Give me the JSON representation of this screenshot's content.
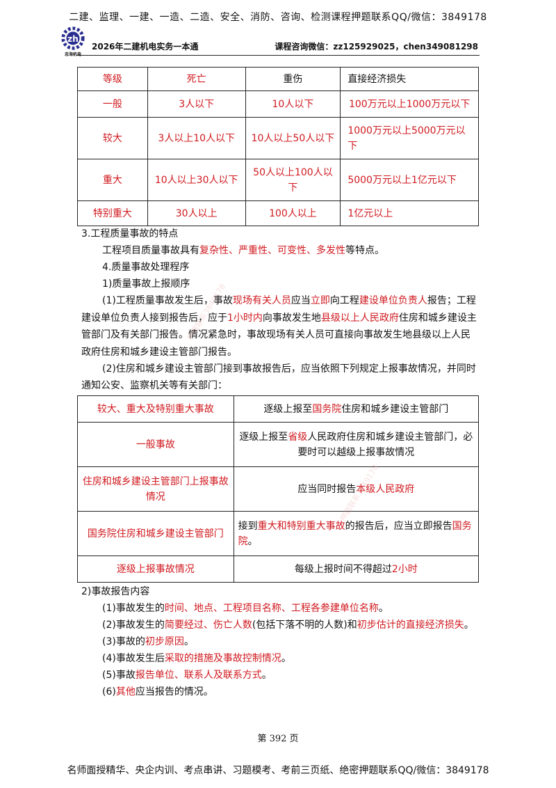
{
  "header": {
    "banner": "二建、监理、一建、一造、二造、安全、消防、咨询、检测课程押题联系QQ/微信：3849178",
    "logo_text": "忠海机电",
    "left": "2026年二建机电实务一本通",
    "right": "课程咨询微信：zz125929025，chen349081298"
  },
  "table1": {
    "headers": [
      "等级",
      "死亡",
      "重伤",
      "直接经济损失"
    ],
    "rows": [
      [
        "一般",
        "3人以下",
        "10人以下",
        "100万元以上1000万元以下"
      ],
      [
        "较大",
        "3人以上10人以下",
        "10人以上50人以下",
        "1000万元以上5000万元以下"
      ],
      [
        "重大",
        "10人以上30人以下",
        "50人以上100人以下",
        "5000万元以上1亿元以下"
      ],
      [
        "特别重大",
        "30人以上",
        "100人以上",
        "1亿元以上"
      ]
    ]
  },
  "section3": {
    "heading": "3.工程质量事故的特点",
    "p_prefix": "工程项目质量事故具有",
    "p_red": "复杂性、严重性、可变性、多发性",
    "p_suffix": "等特点。"
  },
  "section4": {
    "heading": "4.质量事故处理程序",
    "sub1": "1)质量事故上报顺序",
    "para1": {
      "a": "(1)工程质量事故发生后，事故",
      "b": "现场有关人员",
      "c": "应当",
      "d": "立即",
      "e": "向工程",
      "f": "建设单位负责人",
      "g": "报告；工程建设单位负责人接到报告后，应于",
      "h": "1小时内",
      "i": "向事故发生地",
      "j": "县级以上人民政府",
      "k": "住房和城乡建设主管部门及有关部门报告。情况紧急时，事故现场有关人员可直接向事故发生地县级以上人民政府住房和城乡建设主管部门报告。"
    },
    "para2": "(2)住房和城乡建设主管部门接到事故报告后，应当依照下列规定上报事故情况，并同时通知公安、监察机关等有关部门："
  },
  "table2": {
    "r1": {
      "left": "较大、重大及特别重大事故",
      "a": "逐级上报至",
      "b": "国务院",
      "c": "住房和城乡建设主管部门"
    },
    "r2": {
      "left": "一般事故",
      "a": "逐级上报至",
      "b": "省级",
      "c": "人民政府住房和城乡建设主管部门，必要时可以越级上报事故情况"
    },
    "r3": {
      "left": "住房和城乡建设主管部门上报事故情况",
      "a": "应当同时报告",
      "b": "本级人民政府"
    },
    "r4": {
      "left": "国务院住房和城乡建设主管部门",
      "a": "接到",
      "b": "重大和特别重大事故",
      "c": "的报告后，应当立即报告",
      "d": "国务院",
      "e": "。"
    },
    "r5": {
      "left": "逐级上报事故情况",
      "a": "每级上报时间不得超过",
      "b": "2小时"
    }
  },
  "section_report": {
    "heading": "2)事故报告内容",
    "items": [
      {
        "a": "(1)事故发生的",
        "b": "时间、地点、工程项目名称、工程各参建单位名称",
        "c": "。"
      },
      {
        "a": "(2)事故发生的",
        "b": "简要经过、伤亡人数",
        "c": "(包括下落不明的人数)和",
        "d": "初步估计的直接经济损失",
        "e": "。"
      },
      {
        "a": "(3)事故的",
        "b": "初步原因",
        "c": "。"
      },
      {
        "a": "(4)事故发生后",
        "b": "采取的措施及事故控制情况",
        "c": "。"
      },
      {
        "a": "(5)事故",
        "b": "报告单位、联系人及联系方式",
        "c": "。"
      },
      {
        "a": "(6)",
        "b": "其他",
        "c": "应当报告的情况。"
      }
    ]
  },
  "page_number": "第 392 页",
  "footer": "名师面授精华、央企内训、考点串讲、习题模考、考前三页纸、绝密押题联系QQ/微信：3849178",
  "watermark": "押题联系3849178"
}
